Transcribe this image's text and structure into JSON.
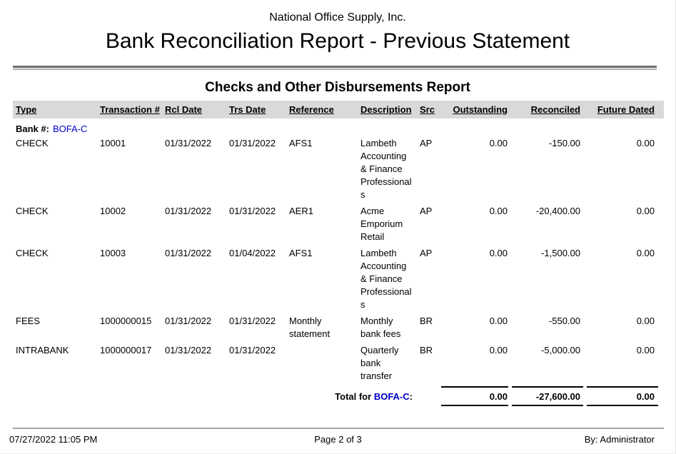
{
  "header": {
    "company": "National Office Supply, Inc.",
    "title": "Bank Reconciliation Report - Previous Statement"
  },
  "section_title": "Checks and Other Disbursements Report",
  "table": {
    "columns": [
      "Type",
      "Transaction #",
      "Rcl Date",
      "Trs Date",
      "Reference",
      "Description",
      "Src",
      "Outstanding",
      "Reconciled",
      "Future Dated"
    ],
    "bank_label": "Bank #:",
    "bank_id": "BOFA-C",
    "rows": [
      {
        "type": "CHECK",
        "transaction": "10001",
        "rcl_date": "01/31/2022",
        "trs_date": "01/31/2022",
        "reference": "AFS1",
        "description": "Lambeth Accounting & Finance Professionals",
        "src": "AP",
        "outstanding": "0.00",
        "reconciled": "-150.00",
        "future_dated": "0.00"
      },
      {
        "type": "CHECK",
        "transaction": "10002",
        "rcl_date": "01/31/2022",
        "trs_date": "01/31/2022",
        "reference": "AER1",
        "description": "Acme Emporium Retail",
        "src": "AP",
        "outstanding": "0.00",
        "reconciled": "-20,400.00",
        "future_dated": "0.00"
      },
      {
        "type": "CHECK",
        "transaction": "10003",
        "rcl_date": "01/31/2022",
        "trs_date": "01/04/2022",
        "reference": "AFS1",
        "description": "Lambeth Accounting & Finance Professionals",
        "src": "AP",
        "outstanding": "0.00",
        "reconciled": "-1,500.00",
        "future_dated": "0.00"
      },
      {
        "type": "FEES",
        "transaction": "1000000015",
        "rcl_date": "01/31/2022",
        "trs_date": "01/31/2022",
        "reference": "Monthly statement",
        "description": "Monthly bank fees",
        "src": "BR",
        "outstanding": "0.00",
        "reconciled": "-550.00",
        "future_dated": "0.00"
      },
      {
        "type": "INTRABANK",
        "transaction": "1000000017",
        "rcl_date": "01/31/2022",
        "trs_date": "01/31/2022",
        "reference": "",
        "description": "Quarterly bank transfer",
        "src": "BR",
        "outstanding": "0.00",
        "reconciled": "-5,000.00",
        "future_dated": "0.00"
      }
    ],
    "total": {
      "label_prefix": "Total for",
      "bank_id": "BOFA-C",
      "label_suffix": ":",
      "outstanding": "0.00",
      "reconciled": "-27,600.00",
      "future_dated": "0.00"
    }
  },
  "footer": {
    "timestamp": "07/27/2022 11:05 PM",
    "page_indicator": "Page 2 of 3",
    "generated_by": "By: Administrator"
  },
  "colors": {
    "accent_blue": "#0000CD",
    "header_bar_bg": "#D9D9D9"
  }
}
